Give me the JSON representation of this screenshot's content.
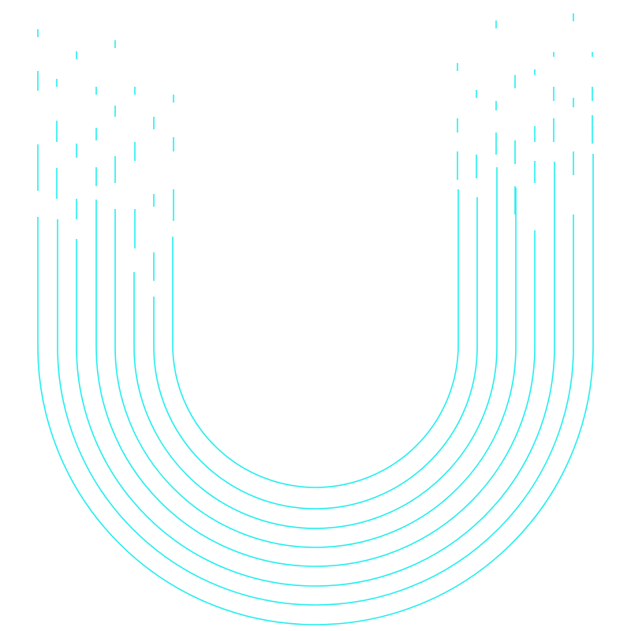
{
  "graphic": {
    "name": "dripping-u-logo",
    "stroke_color": "#22eeee",
    "background_color": "#ffffff",
    "line_count": 8
  }
}
